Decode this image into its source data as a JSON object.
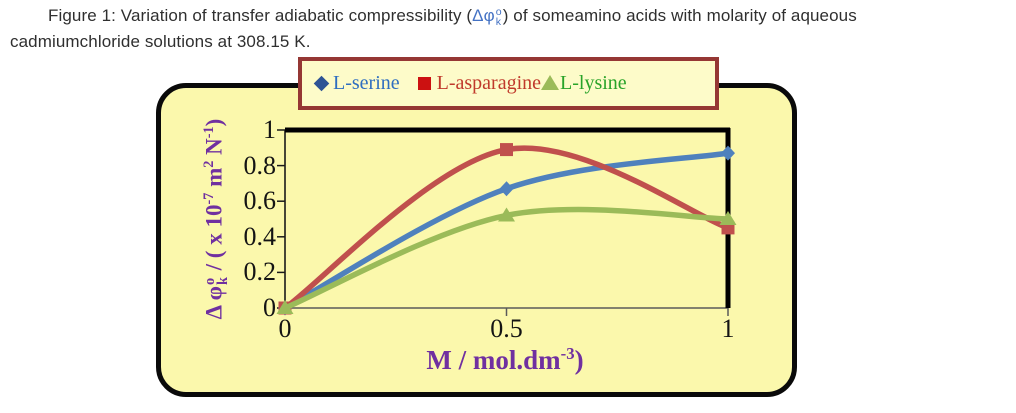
{
  "caption": {
    "line1_prefix": "Figure 1: Variation of transfer adiabatic compressibility (",
    "formula": {
      "base": "Δφ",
      "sup": "o",
      "sub": "k"
    },
    "line1_suffix": ")  of someamino acids with molarity of aqueous",
    "line2": "cadmiumchloride solutions at 308.15 K.",
    "formula_color": "#4472C4"
  },
  "panel": {
    "background": "#FBF8AC",
    "border_color": "#0A0A0A"
  },
  "legend": {
    "background": "#FDFBC9",
    "border_color": "#953734",
    "items": [
      {
        "label": "L-serine",
        "marker": "diamond",
        "marker_color": "#2E5395",
        "text_color": "#2E6EC0"
      },
      {
        "label": "L-asparagine",
        "marker": "square",
        "marker_color": "#CC1111",
        "text_color": "#C0392B"
      },
      {
        "label": "L-lysine",
        "marker": "triangle",
        "marker_color": "#9BBB59",
        "text_color": "#29A329"
      }
    ]
  },
  "axes": {
    "title_color": "#7030A0",
    "y_title": {
      "p1": "Δ φ",
      "sup_o": "o",
      "sub_k": "k",
      "p2": " / ( x 10",
      "e1": "-7",
      "p3": " m",
      "e2": "2",
      "p4": " N",
      "e3": "-1",
      "p5": ")"
    },
    "x_title": {
      "p1": "M / mol.dm",
      "e1": "-3",
      "p2": ")"
    }
  },
  "chart_data": {
    "type": "line",
    "x": [
      0,
      0.5,
      1
    ],
    "series": [
      {
        "name": "L-serine",
        "marker": "diamond",
        "color": "#4F81BD",
        "values": [
          0,
          0.67,
          0.87
        ]
      },
      {
        "name": "L-asparagine",
        "marker": "square",
        "color": "#C0504D",
        "values": [
          0,
          0.89,
          0.45
        ]
      },
      {
        "name": "L-lysine",
        "marker": "triangle",
        "color": "#9BBB59",
        "values": [
          0,
          0.52,
          0.5
        ]
      }
    ],
    "xlabel": "M / mol.dm-3)",
    "ylabel": "Δ φ°k / ( x 10-7 m2 N-1)",
    "xlim": [
      0,
      1
    ],
    "ylim": [
      0,
      1
    ],
    "x_tick_values": [
      0,
      0.5,
      1
    ],
    "y_tick_values": [
      0,
      0.2,
      0.4,
      0.6,
      0.8,
      1
    ],
    "grid": false,
    "smooth": true,
    "legend_position": "top"
  }
}
